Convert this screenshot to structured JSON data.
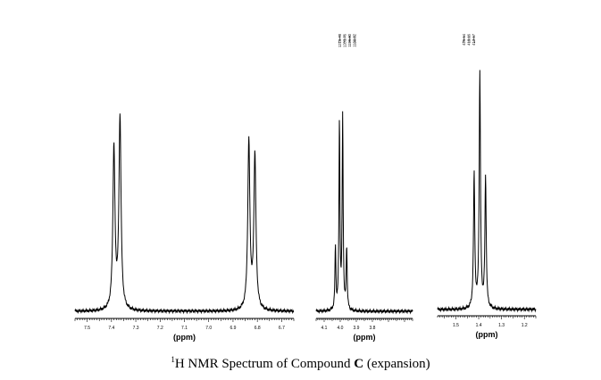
{
  "chart_data": [
    {
      "type": "line",
      "region": "aromatic",
      "xlabel": "(ppm)",
      "xlim": [
        7.55,
        6.65
      ],
      "ticks": [
        "7.5",
        "7.4",
        "7.3",
        "7.2",
        "7.1",
        "7.0",
        "6.9",
        "6.8",
        "6.7"
      ],
      "peaks": [
        {
          "x": 7.39,
          "height": 0.72
        },
        {
          "x": 7.365,
          "height": 0.86
        },
        {
          "x": 6.835,
          "height": 0.75
        },
        {
          "x": 6.81,
          "height": 0.69
        }
      ],
      "peak_labels": []
    },
    {
      "type": "line",
      "region": "methylene",
      "xlabel": "(ppm)",
      "xlim": [
        4.15,
        3.55
      ],
      "ticks": [
        "4.1",
        "4.0",
        "3.9",
        "3.8"
      ],
      "peaks": [
        {
          "x": 4.03,
          "height": 0.28
        },
        {
          "x": 4.005,
          "height": 0.84
        },
        {
          "x": 3.985,
          "height": 0.86
        },
        {
          "x": 3.96,
          "height": 0.28
        }
      ],
      "peak_labels": [
        "1210.78",
        "1203.76",
        "1196.80",
        "1189.82"
      ]
    },
    {
      "type": "line",
      "region": "methyl",
      "xlabel": "(ppm)",
      "xlim": [
        1.58,
        1.15
      ],
      "ticks": [
        "1.5",
        "1.4",
        "1.3",
        "1.2"
      ],
      "peaks": [
        {
          "x": 1.42,
          "height": 0.57
        },
        {
          "x": 1.395,
          "height": 1.0
        },
        {
          "x": 1.37,
          "height": 0.56
        }
      ],
      "peak_labels": [
        "426.14",
        "419.16",
        "412.17"
      ]
    }
  ],
  "caption": {
    "sup": "1",
    "pre": "H NMR Spectrum of Compound ",
    "bold": "C",
    "post": " (expansion)"
  }
}
